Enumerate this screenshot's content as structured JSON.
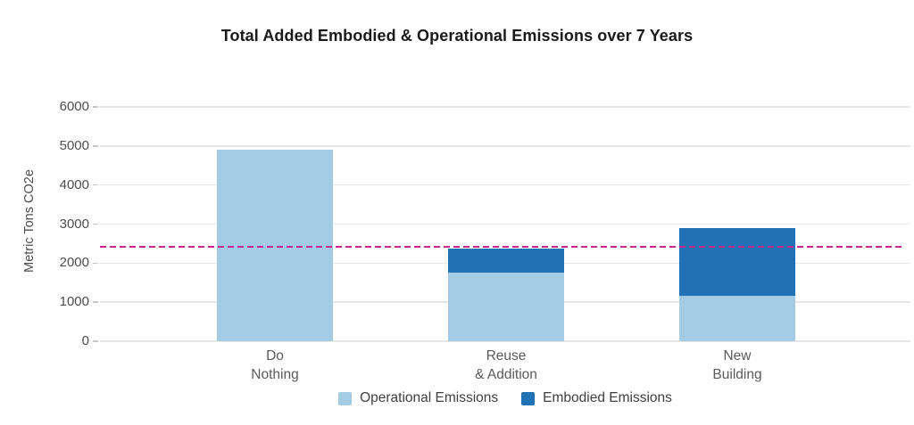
{
  "chart_data": {
    "type": "bar",
    "stacked": true,
    "title": "Total Added Embodied & Operational Emissions over 7 Years",
    "xlabel": "",
    "ylabel": "Metric Tons CO2e",
    "categories": [
      "Do Nothing",
      "Reuse & Addition",
      "New Building"
    ],
    "category_lines": [
      [
        "Do",
        "Nothing"
      ],
      [
        "Reuse",
        "& Addition"
      ],
      [
        "New",
        "Building"
      ]
    ],
    "series": [
      {
        "name": "Operational Emissions",
        "color": "#a3cbe3",
        "values": [
          4900,
          1760,
          1170
        ]
      },
      {
        "name": "Embodied Emissions",
        "color": "#2072b5",
        "values": [
          0,
          610,
          1730
        ]
      }
    ],
    "stack_totals": [
      4900,
      2370,
      2900
    ],
    "reference_line": {
      "value": 2430,
      "color": "#c9258f",
      "style": "dashed"
    },
    "y_ticks": [
      0,
      1000,
      2000,
      3000,
      4000,
      5000,
      6000
    ],
    "ylim": [
      0,
      6000
    ],
    "grid": true,
    "legend_position": "bottom",
    "colors": {
      "background": "#ffffff",
      "gridline": "#e7e7e7",
      "axis_text": "#595959",
      "title_text": "#1a1a1a"
    }
  }
}
